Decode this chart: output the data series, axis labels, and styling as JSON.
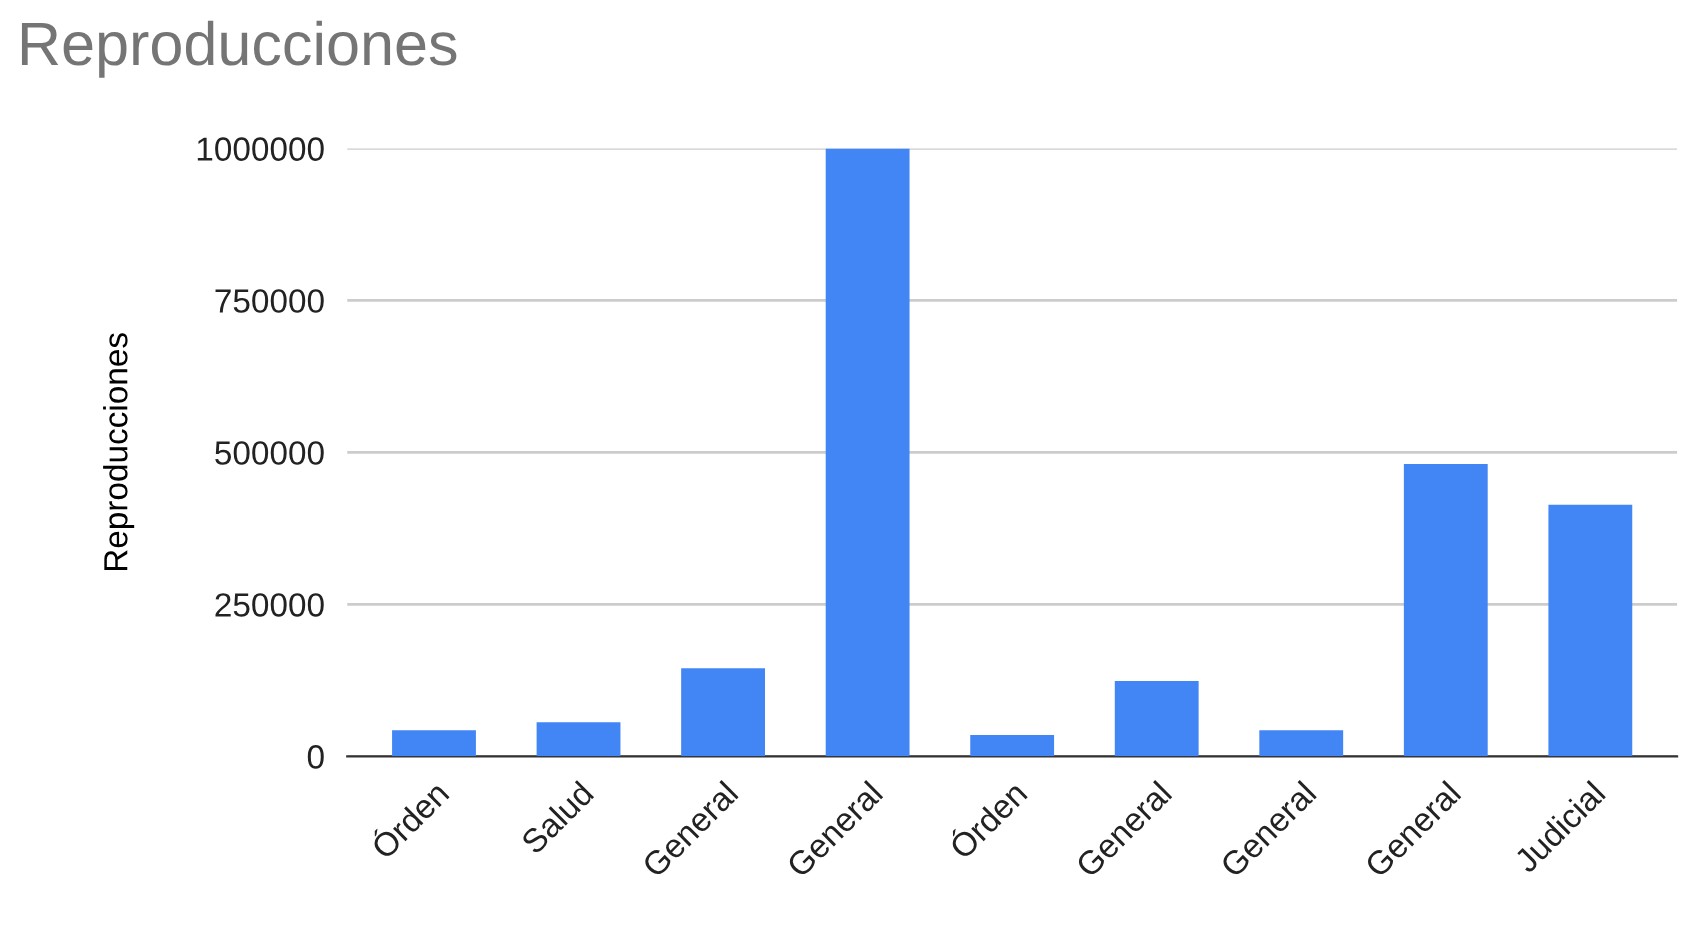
{
  "chart_data": {
    "type": "bar",
    "title": "Reproducciones",
    "ylabel": "Reproducciones",
    "categories": [
      "Órden",
      "Salud",
      "General",
      "General",
      "Órden",
      "General",
      "General",
      "General",
      "Judicial"
    ],
    "values": [
      43000,
      56000,
      145000,
      1000000,
      35000,
      124000,
      43000,
      481000,
      414000
    ],
    "color": "#4285f4",
    "ylim": [
      0,
      1000000
    ],
    "yticks": [
      0,
      250000,
      500000,
      750000,
      1000000
    ],
    "grid": "y",
    "legend": false
  }
}
